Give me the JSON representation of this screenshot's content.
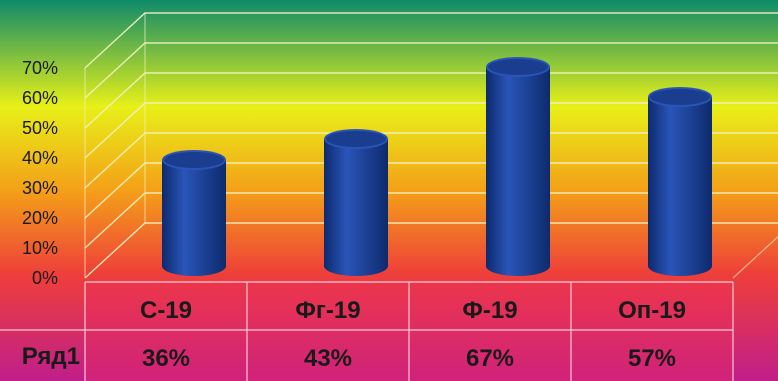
{
  "chart_data": {
    "type": "bar",
    "title": "",
    "xlabel": "",
    "ylabel": "",
    "categories": [
      "С-19",
      "Фг-19",
      "Ф-19",
      "Оп-19"
    ],
    "series": [
      {
        "name": "Ряд1",
        "values": [
          36,
          43,
          67,
          57
        ],
        "labels": [
          "36%",
          "43%",
          "67%",
          "57%"
        ],
        "color": "#0d2a6e"
      }
    ],
    "ylim": [
      0,
      70
    ],
    "yticks": [
      0,
      10,
      20,
      30,
      40,
      50,
      60,
      70
    ],
    "ytick_labels": [
      "0%",
      "10%",
      "20%",
      "30%",
      "40%",
      "50%",
      "60%",
      "70%"
    ],
    "grid": true,
    "legend": "none",
    "data_table": true,
    "style": "3d-cylinder"
  },
  "colors": {
    "background_top": "#0e8a6a",
    "background_upper": "#e8f018",
    "background_mid": "#f4a018",
    "background_lower": "#ee3f3a",
    "background_bottom": "#c01e8a",
    "table_fill": "#ee2c60",
    "bar": "#0d2a6e",
    "bar_highlight": "#2a55b8",
    "gridline": "#f2f2c0"
  }
}
